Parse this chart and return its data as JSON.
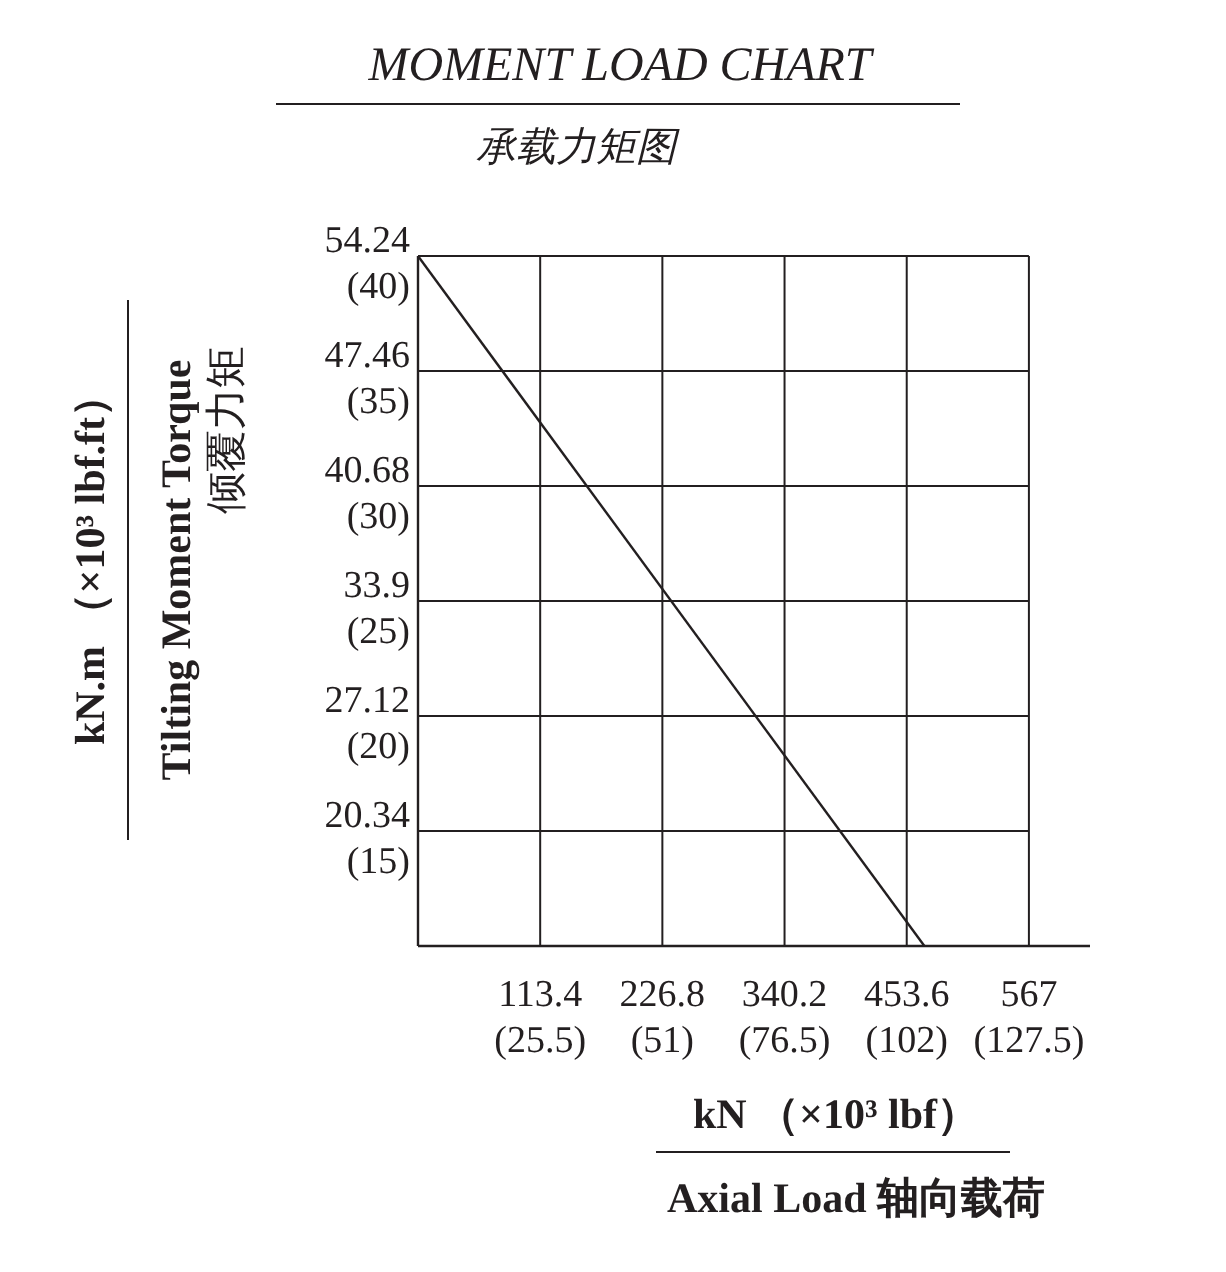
{
  "chart_data": {
    "type": "line",
    "title": "MOMENT LOAD CHART",
    "subtitle": "承载力矩图",
    "xlabel": "kN （×10³ lbf）",
    "annotations": [
      "kN.m （×10³ lbf.ft）",
      "Tilting Moment Torque",
      "倾覆力矩",
      "Axial Load  轴向载荷"
    ],
    "x": [
      0,
      470
    ],
    "series": [
      {
        "color": "#231f20",
        "values": [
          54.24,
          13.56
        ]
      }
    ],
    "xlim": [
      0,
      623.7
    ],
    "ylim": [
      13.56,
      54.24
    ],
    "xticks": [
      113.4,
      226.8,
      340.2,
      453.6,
      567
    ],
    "yticks": [
      54.24,
      47.46,
      40.68,
      33.9,
      27.12,
      20.34
    ],
    "x2lim": [
      0,
      140.25
    ],
    "x2ticks": [
      {
        "value": 25.5,
        "label": "(25.5)"
      },
      {
        "value": 51,
        "label": "(51)"
      },
      {
        "value": 76.5,
        "label": "(76.5)"
      },
      {
        "value": 102,
        "label": "(102)"
      },
      {
        "value": 127.5,
        "label": "(127.5)"
      }
    ],
    "y2lim": [
      10,
      40
    ],
    "y2ticks": [
      {
        "value": 40,
        "label": "(40)"
      },
      {
        "value": 35,
        "label": "(35)"
      },
      {
        "value": 30,
        "label": "(30)"
      },
      {
        "value": 25,
        "label": "(25)"
      },
      {
        "value": 20,
        "label": "(20)"
      },
      {
        "value": 15,
        "label": "(15)"
      }
    ],
    "grid": true,
    "marker": "none",
    "line_style": "solid"
  }
}
